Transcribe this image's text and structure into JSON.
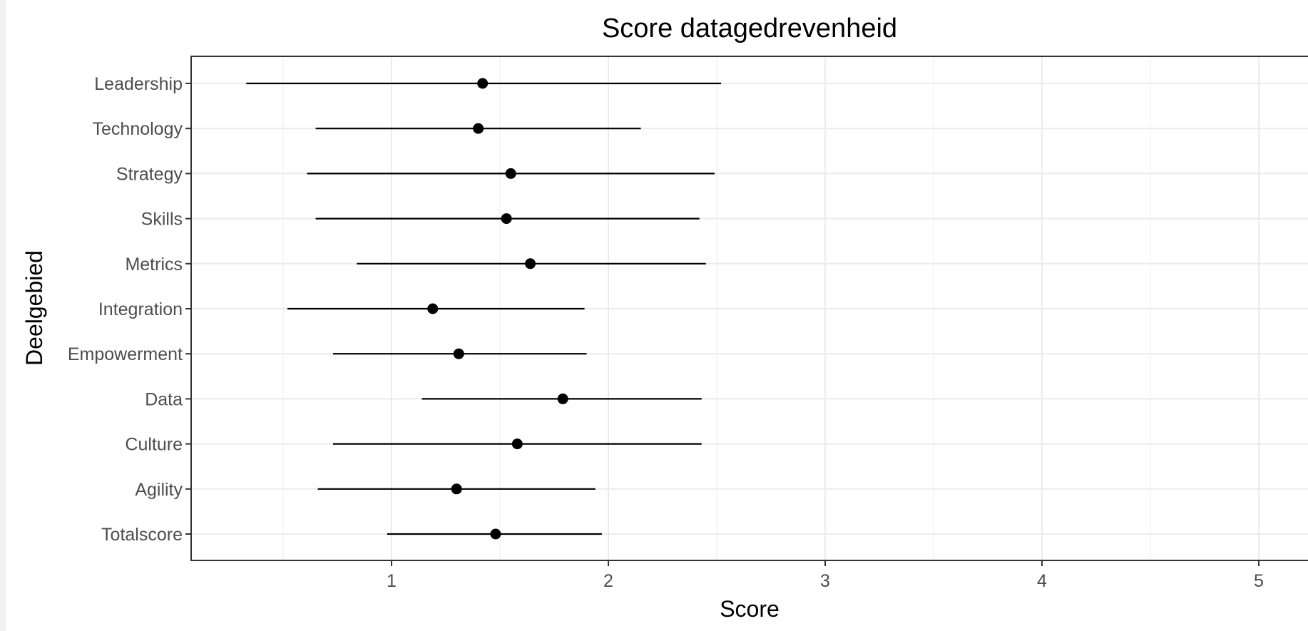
{
  "chart_data": {
    "type": "scatter",
    "subtype": "point-range",
    "title": "Score datagedrevenheid",
    "xlabel": "Score",
    "ylabel": "Deelgebied",
    "xlim": [
      0.1,
      5.25
    ],
    "x_ticks": [
      "1",
      "2",
      "3",
      "4",
      "5"
    ],
    "x_tick_values": [
      1,
      2,
      3,
      4,
      5
    ],
    "grid": true,
    "categories": [
      "Leadership",
      "Technology",
      "Strategy",
      "Skills",
      "Metrics",
      "Integration",
      "Empowerment",
      "Data",
      "Culture",
      "Agility",
      "Totalscore"
    ],
    "series": [
      {
        "points": [
          1.42,
          1.4,
          1.55,
          1.53,
          1.64,
          1.19,
          1.31,
          1.79,
          1.58,
          1.3,
          1.48
        ],
        "lower": [
          0.33,
          0.65,
          0.61,
          0.65,
          0.84,
          0.52,
          0.73,
          1.14,
          0.73,
          0.66,
          0.98
        ],
        "upper": [
          2.52,
          2.15,
          2.49,
          2.42,
          2.45,
          1.89,
          1.9,
          2.43,
          2.43,
          1.94,
          1.97
        ]
      }
    ],
    "colors": {
      "point": "#000000",
      "range": "#000000",
      "grid": "#ebebeb",
      "panel_border": "#333333"
    }
  }
}
